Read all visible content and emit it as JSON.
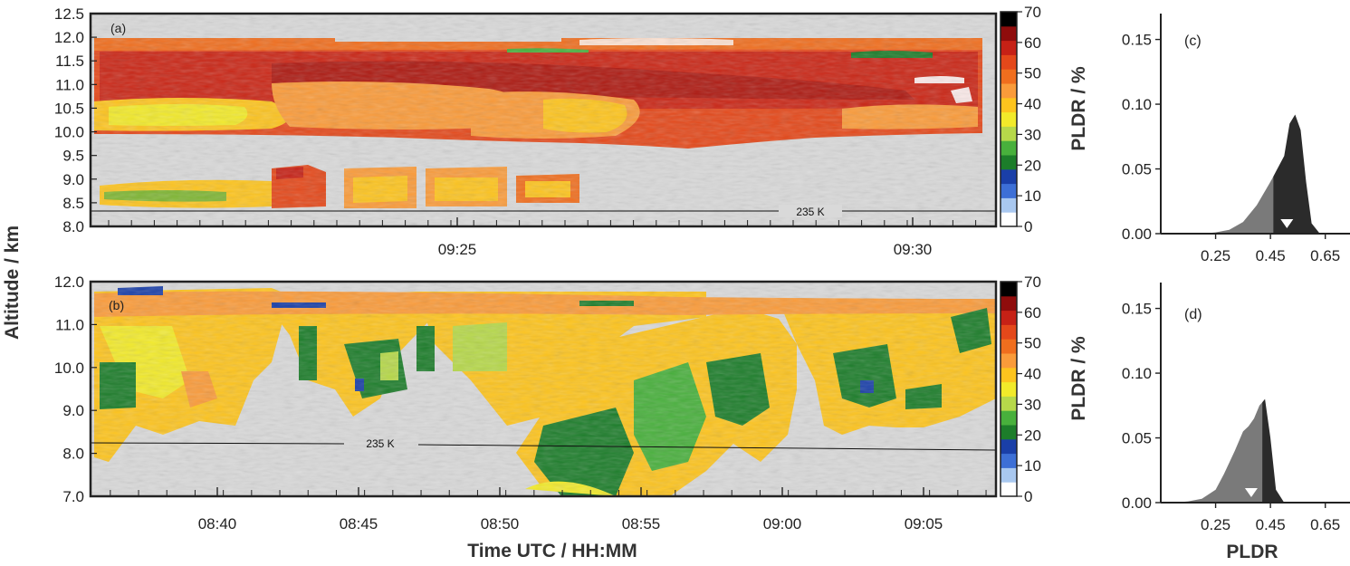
{
  "panels": {
    "a": {
      "label": "(a)"
    },
    "b": {
      "label": "(b)"
    },
    "c": {
      "label": "(c)"
    },
    "d": {
      "label": "(d)"
    }
  },
  "labels": {
    "ylabel_altitude": "Altitude / km",
    "xlabel_time": "Time UTC / HH:MM",
    "colorbar_label": "PLDR / %",
    "xlabel_pldr": "PLDR",
    "isotherm_a": "235 K",
    "isotherm_b": "235 K"
  },
  "chart_data": [
    {
      "type": "heatmap",
      "panel": "(a)",
      "title": "",
      "xlabel": "",
      "ylabel": "Altitude / km",
      "x_tick_labels": [
        "09:25",
        "09:30"
      ],
      "y_ticks": [
        8.0,
        8.5,
        9.0,
        9.5,
        10.0,
        10.5,
        11.0,
        11.5,
        12.0,
        12.5
      ],
      "ylim": [
        8.0,
        12.5
      ],
      "colorbar": {
        "label": "PLDR / %",
        "ticks": [
          0,
          10,
          20,
          30,
          40,
          50,
          60,
          70
        ]
      },
      "annotation": "235 K",
      "cloud_base_km": 9.7,
      "cloud_top_km": 11.9,
      "fallstreak_range_km": [
        8.4,
        9.3
      ]
    },
    {
      "type": "heatmap",
      "panel": "(b)",
      "title": "",
      "xlabel": "Time UTC / HH:MM",
      "ylabel": "Altitude / km",
      "x_tick_labels": [
        "08:40",
        "08:45",
        "08:50",
        "08:55",
        "09:00",
        "09:05"
      ],
      "y_ticks": [
        7.0,
        8.0,
        9.0,
        10.0,
        11.0,
        12.0
      ],
      "ylim": [
        7.0,
        12.0
      ],
      "colorbar": {
        "label": "PLDR / %",
        "ticks": [
          0,
          10,
          20,
          30,
          40,
          50,
          60,
          70
        ]
      },
      "annotation": "235 K"
    },
    {
      "type": "area",
      "panel": "(c)",
      "title": "",
      "xlabel": "",
      "ylabel": "",
      "x_ticks": [
        0.25,
        0.45,
        0.65
      ],
      "y_ticks": [
        0.0,
        0.05,
        0.1,
        0.15
      ],
      "xlim": [
        0.05,
        0.75
      ],
      "ylim": [
        0.0,
        0.17
      ],
      "x": [
        0.2,
        0.25,
        0.3,
        0.35,
        0.4,
        0.45,
        0.47,
        0.5,
        0.52,
        0.54,
        0.56,
        0.58,
        0.6,
        0.63
      ],
      "y": [
        0.0,
        0.001,
        0.003,
        0.009,
        0.022,
        0.04,
        0.048,
        0.06,
        0.085,
        0.092,
        0.08,
        0.04,
        0.008,
        0.0
      ],
      "split_x": 0.46,
      "marker_x": 0.51
    },
    {
      "type": "area",
      "panel": "(d)",
      "title": "",
      "xlabel": "PLDR",
      "ylabel": "",
      "x_ticks": [
        0.25,
        0.45,
        0.65
      ],
      "y_ticks": [
        0.0,
        0.05,
        0.1,
        0.15
      ],
      "xlim": [
        0.05,
        0.75
      ],
      "ylim": [
        0.0,
        0.17
      ],
      "x": [
        0.1,
        0.15,
        0.2,
        0.25,
        0.28,
        0.32,
        0.35,
        0.37,
        0.39,
        0.41,
        0.43,
        0.45,
        0.47,
        0.5
      ],
      "y": [
        0.0,
        0.001,
        0.003,
        0.01,
        0.022,
        0.04,
        0.055,
        0.059,
        0.065,
        0.075,
        0.08,
        0.05,
        0.01,
        0.0
      ],
      "split_x": 0.42,
      "marker_x": 0.38
    }
  ],
  "colors": {
    "background_gray": "#d9d9d9",
    "light_fill": "#7a7a7a",
    "dark_fill": "#2b2b2b",
    "colorbar": [
      "#ffffff",
      "#a9c8f0",
      "#3d6fd6",
      "#1a3fa8",
      "#1c7d2a",
      "#48b03c",
      "#b6d84a",
      "#f2ea2a",
      "#fdc41e",
      "#fa9b3a",
      "#f06e1e",
      "#e4481a",
      "#c62116",
      "#8f0c0c",
      "#000000"
    ]
  }
}
